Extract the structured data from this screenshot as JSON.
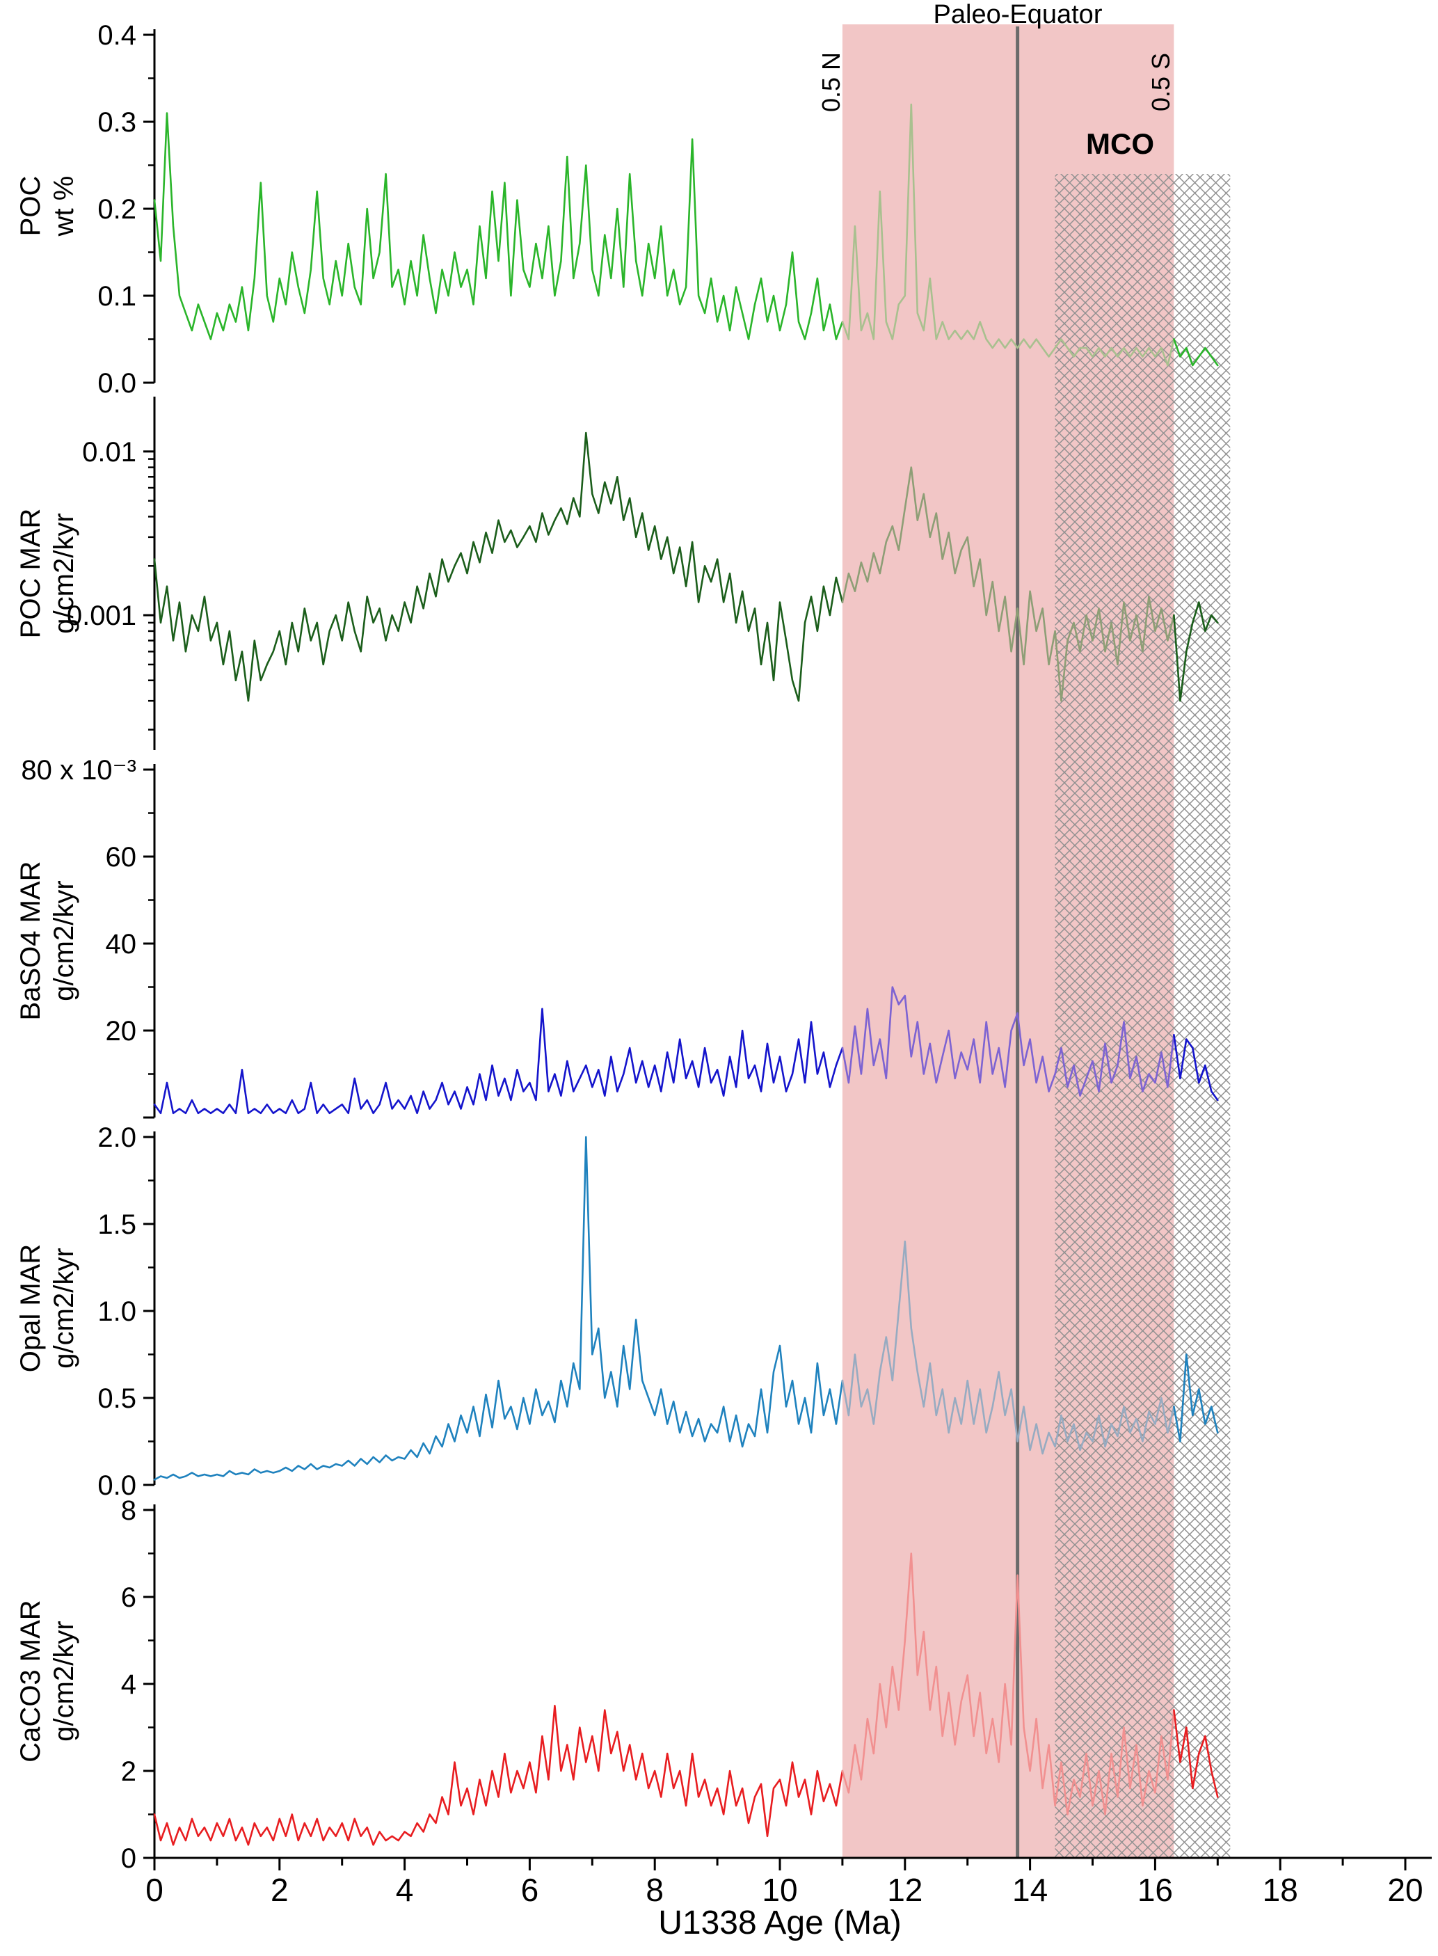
{
  "figure": {
    "xlabel": "U1338 Age (Ma)",
    "x_ticks": [
      0,
      2,
      4,
      6,
      8,
      10,
      12,
      14,
      16,
      18,
      20
    ],
    "x_minor_step": 1,
    "axis_color": "#000000",
    "annotations": {
      "paleo_equator": {
        "label": "Paleo-Equator",
        "x_ma": 13.8,
        "line_color": "#6b6b6b"
      },
      "band": {
        "label_left": "0.5 N",
        "label_right": "0.5 S",
        "x_ma": [
          11.0,
          16.3
        ],
        "color": "#f2c6c6"
      },
      "mco": {
        "label": "MCO",
        "x_ma": [
          14.4,
          17.2
        ],
        "hatch_color": "#909090"
      }
    }
  },
  "chart_data": [
    {
      "type": "line",
      "name": "poc-wt",
      "label": "POC",
      "units": "wt %",
      "scale": "linear",
      "ymin": 0,
      "ymax": 0.4,
      "yticks": [
        0,
        0.1,
        0.2,
        0.3,
        0.4
      ],
      "ytick_labels": [
        "0.0",
        "0.1",
        "0.2",
        "0.3",
        "0.4"
      ],
      "color_main": "#2ab52a",
      "color_band": "#a9c08f",
      "x_start": 0,
      "x_step": 0.1,
      "x_units": "Ma",
      "values": [
        0.21,
        0.14,
        0.31,
        0.18,
        0.1,
        0.08,
        0.06,
        0.09,
        0.07,
        0.05,
        0.08,
        0.06,
        0.09,
        0.07,
        0.11,
        0.06,
        0.12,
        0.23,
        0.1,
        0.07,
        0.12,
        0.09,
        0.15,
        0.11,
        0.08,
        0.13,
        0.22,
        0.12,
        0.09,
        0.14,
        0.1,
        0.16,
        0.11,
        0.09,
        0.2,
        0.12,
        0.15,
        0.24,
        0.11,
        0.13,
        0.09,
        0.14,
        0.1,
        0.17,
        0.12,
        0.08,
        0.13,
        0.1,
        0.15,
        0.11,
        0.13,
        0.09,
        0.18,
        0.12,
        0.22,
        0.14,
        0.23,
        0.1,
        0.21,
        0.13,
        0.11,
        0.16,
        0.12,
        0.18,
        0.1,
        0.14,
        0.26,
        0.12,
        0.16,
        0.25,
        0.13,
        0.1,
        0.17,
        0.12,
        0.2,
        0.11,
        0.24,
        0.14,
        0.1,
        0.16,
        0.12,
        0.18,
        0.1,
        0.13,
        0.09,
        0.11,
        0.28,
        0.1,
        0.08,
        0.12,
        0.07,
        0.1,
        0.06,
        0.11,
        0.08,
        0.05,
        0.09,
        0.12,
        0.07,
        0.1,
        0.06,
        0.09,
        0.15,
        0.07,
        0.05,
        0.08,
        0.12,
        0.06,
        0.09,
        0.05,
        0.07,
        0.05,
        0.18,
        0.06,
        0.08,
        0.05,
        0.22,
        0.07,
        0.05,
        0.09,
        0.1,
        0.32,
        0.08,
        0.06,
        0.12,
        0.05,
        0.07,
        0.05,
        0.06,
        0.05,
        0.06,
        0.05,
        0.07,
        0.05,
        0.04,
        0.05,
        0.04,
        0.05,
        0.04,
        0.05,
        0.04,
        0.05,
        0.04,
        0.03,
        0.04,
        0.05,
        0.04,
        0.03,
        0.04,
        0.04,
        0.03,
        0.04,
        0.03,
        0.04,
        0.03,
        0.04,
        0.03,
        0.04,
        0.03,
        0.04,
        0.03,
        0.04,
        0.02,
        0.05,
        0.03,
        0.04,
        0.02,
        0.03,
        0.04,
        0.03,
        0.02
      ]
    },
    {
      "type": "line",
      "name": "poc-mar",
      "label": "POC MAR",
      "units": "g/cm2/kyr",
      "scale": "log",
      "ymin": 0.00015,
      "ymax": 0.02,
      "yticks": [
        0.001,
        0.01
      ],
      "ytick_labels": [
        "0.001",
        "0.01"
      ],
      "color_main": "#1b5e1b",
      "color_band": "#8e9e76",
      "x_start": 0,
      "x_step": 0.1,
      "x_units": "Ma",
      "values": [
        0.0022,
        0.0009,
        0.0015,
        0.0007,
        0.0012,
        0.0006,
        0.001,
        0.0008,
        0.0013,
        0.0007,
        0.0009,
        0.0005,
        0.0008,
        0.0004,
        0.0006,
        0.0003,
        0.0007,
        0.0004,
        0.0005,
        0.0006,
        0.0008,
        0.0005,
        0.0009,
        0.0006,
        0.0011,
        0.0007,
        0.0009,
        0.0005,
        0.0008,
        0.001,
        0.0007,
        0.0012,
        0.0008,
        0.0006,
        0.0013,
        0.0009,
        0.0011,
        0.0007,
        0.001,
        0.0008,
        0.0012,
        0.0009,
        0.0015,
        0.0011,
        0.0018,
        0.0013,
        0.0022,
        0.0016,
        0.002,
        0.0024,
        0.0018,
        0.0028,
        0.0021,
        0.0032,
        0.0024,
        0.0038,
        0.0028,
        0.0033,
        0.0026,
        0.003,
        0.0035,
        0.0028,
        0.0042,
        0.0031,
        0.0038,
        0.0045,
        0.0036,
        0.0052,
        0.004,
        0.013,
        0.0055,
        0.0042,
        0.0065,
        0.0048,
        0.007,
        0.0038,
        0.0052,
        0.003,
        0.0042,
        0.0025,
        0.0035,
        0.0022,
        0.003,
        0.0018,
        0.0026,
        0.0015,
        0.0028,
        0.0012,
        0.002,
        0.0016,
        0.0022,
        0.0012,
        0.0018,
        0.0009,
        0.0014,
        0.0008,
        0.0011,
        0.0005,
        0.0009,
        0.0004,
        0.0012,
        0.0007,
        0.0004,
        0.0003,
        0.0009,
        0.0013,
        0.0008,
        0.0015,
        0.001,
        0.0017,
        0.0012,
        0.0018,
        0.0014,
        0.0021,
        0.0016,
        0.0024,
        0.0018,
        0.0028,
        0.0035,
        0.0025,
        0.0045,
        0.008,
        0.0038,
        0.0055,
        0.003,
        0.0042,
        0.0022,
        0.0032,
        0.0018,
        0.0025,
        0.003,
        0.0015,
        0.0022,
        0.001,
        0.0016,
        0.0008,
        0.0013,
        0.0006,
        0.0011,
        0.0005,
        0.0014,
        0.0008,
        0.0011,
        0.0005,
        0.0008,
        0.0003,
        0.0007,
        0.0009,
        0.0006,
        0.001,
        0.0007,
        0.0011,
        0.0006,
        0.0009,
        0.0005,
        0.0012,
        0.0007,
        0.001,
        0.0006,
        0.0013,
        0.0008,
        0.0011,
        0.0007,
        0.001,
        0.0003,
        0.0006,
        0.0009,
        0.0012,
        0.0008,
        0.001,
        0.0009
      ]
    },
    {
      "type": "line",
      "name": "baso4-mar",
      "label": "BaSO4 MAR",
      "units": "g/cm2/kyr",
      "scale": "linear",
      "ymin": 0,
      "ymax": 80,
      "value_scale_note": "x 10^-3",
      "yticks": [
        0,
        20,
        40,
        60,
        80
      ],
      "ytick_labels": [
        "",
        "20",
        "40",
        "60",
        "80 x 10⁻³"
      ],
      "color_main": "#1414cc",
      "color_band": "#7d63d2",
      "x_start": 0,
      "x_step": 0.1,
      "x_units": "Ma",
      "values": [
        3,
        1,
        8,
        1,
        2,
        1,
        4,
        1,
        2,
        1,
        2,
        1,
        3,
        1,
        11,
        1,
        2,
        1,
        3,
        1,
        2,
        1,
        4,
        1,
        2,
        8,
        1,
        3,
        1,
        2,
        3,
        1,
        9,
        2,
        4,
        1,
        3,
        8,
        2,
        4,
        2,
        5,
        1,
        6,
        2,
        4,
        8,
        3,
        6,
        2,
        7,
        3,
        10,
        4,
        12,
        5,
        9,
        4,
        11,
        6,
        8,
        4,
        25,
        6,
        10,
        5,
        13,
        6,
        9,
        12,
        7,
        11,
        5,
        14,
        6,
        10,
        16,
        8,
        13,
        7,
        12,
        6,
        15,
        8,
        18,
        9,
        13,
        7,
        16,
        8,
        11,
        5,
        14,
        7,
        20,
        9,
        12,
        6,
        17,
        8,
        14,
        6,
        10,
        18,
        8,
        22,
        10,
        15,
        7,
        12,
        16,
        8,
        21,
        10,
        25,
        12,
        18,
        9,
        30,
        26,
        28,
        14,
        22,
        10,
        17,
        8,
        14,
        20,
        9,
        15,
        11,
        18,
        8,
        22,
        10,
        16,
        7,
        20,
        24,
        12,
        18,
        8,
        14,
        6,
        10,
        16,
        7,
        12,
        5,
        9,
        13,
        6,
        17,
        8,
        12,
        22,
        9,
        14,
        6,
        10,
        8,
        15,
        7,
        19,
        9,
        18,
        16,
        8,
        12,
        6,
        4
      ]
    },
    {
      "type": "line",
      "name": "opal-mar",
      "label": "Opal MAR",
      "units": "g/cm2/kyr",
      "scale": "linear",
      "ymin": 0,
      "ymax": 2.0,
      "yticks": [
        0,
        0.5,
        1.0,
        1.5,
        2.0
      ],
      "ytick_labels": [
        "0.0",
        "0.5",
        "1.0",
        "1.5",
        "2.0"
      ],
      "color_main": "#1f82be",
      "color_band": "#97abc1",
      "x_start": 0,
      "x_step": 0.1,
      "x_units": "Ma",
      "values": [
        0.03,
        0.05,
        0.04,
        0.06,
        0.04,
        0.05,
        0.07,
        0.05,
        0.06,
        0.05,
        0.06,
        0.05,
        0.08,
        0.06,
        0.07,
        0.06,
        0.09,
        0.07,
        0.08,
        0.07,
        0.08,
        0.1,
        0.08,
        0.11,
        0.09,
        0.12,
        0.09,
        0.11,
        0.1,
        0.12,
        0.11,
        0.14,
        0.11,
        0.15,
        0.12,
        0.16,
        0.13,
        0.17,
        0.14,
        0.16,
        0.15,
        0.2,
        0.16,
        0.24,
        0.18,
        0.28,
        0.22,
        0.35,
        0.25,
        0.4,
        0.3,
        0.45,
        0.28,
        0.52,
        0.33,
        0.6,
        0.38,
        0.45,
        0.32,
        0.5,
        0.35,
        0.55,
        0.4,
        0.48,
        0.36,
        0.6,
        0.45,
        0.7,
        0.55,
        2.0,
        0.75,
        0.9,
        0.5,
        0.65,
        0.45,
        0.8,
        0.55,
        0.95,
        0.6,
        0.5,
        0.4,
        0.55,
        0.35,
        0.48,
        0.3,
        0.42,
        0.28,
        0.38,
        0.25,
        0.35,
        0.3,
        0.45,
        0.25,
        0.4,
        0.22,
        0.35,
        0.28,
        0.55,
        0.3,
        0.65,
        0.8,
        0.45,
        0.6,
        0.35,
        0.5,
        0.3,
        0.7,
        0.4,
        0.55,
        0.35,
        0.6,
        0.4,
        0.75,
        0.45,
        0.55,
        0.35,
        0.65,
        0.85,
        0.6,
        1.0,
        1.4,
        0.9,
        0.65,
        0.45,
        0.7,
        0.4,
        0.55,
        0.3,
        0.5,
        0.35,
        0.6,
        0.35,
        0.55,
        0.3,
        0.45,
        0.65,
        0.4,
        0.55,
        0.25,
        0.45,
        0.2,
        0.35,
        0.18,
        0.3,
        0.22,
        0.4,
        0.25,
        0.35,
        0.2,
        0.3,
        0.25,
        0.4,
        0.22,
        0.35,
        0.28,
        0.45,
        0.3,
        0.38,
        0.25,
        0.42,
        0.35,
        0.5,
        0.3,
        0.45,
        0.25,
        0.75,
        0.4,
        0.55,
        0.35,
        0.45,
        0.3
      ]
    },
    {
      "type": "line",
      "name": "caco3-mar",
      "label": "CaCO3 MAR",
      "units": "g/cm2/kyr",
      "scale": "linear",
      "ymin": 0,
      "ymax": 8,
      "yticks": [
        0,
        2,
        4,
        6,
        8
      ],
      "ytick_labels": [
        "0",
        "2",
        "4",
        "6",
        "8"
      ],
      "color_main": "#e81d20",
      "color_band": "#f19090",
      "x_start": 0,
      "x_step": 0.1,
      "x_units": "Ma",
      "values": [
        1.0,
        0.4,
        0.8,
        0.3,
        0.7,
        0.4,
        0.9,
        0.5,
        0.7,
        0.4,
        0.8,
        0.5,
        0.9,
        0.4,
        0.7,
        0.3,
        0.8,
        0.5,
        0.7,
        0.4,
        0.9,
        0.5,
        1.0,
        0.4,
        0.8,
        0.5,
        0.9,
        0.4,
        0.7,
        0.5,
        0.8,
        0.4,
        0.9,
        0.5,
        0.7,
        0.3,
        0.6,
        0.4,
        0.5,
        0.4,
        0.6,
        0.5,
        0.8,
        0.6,
        1.0,
        0.8,
        1.4,
        1.0,
        2.2,
        1.2,
        1.6,
        1.0,
        1.8,
        1.2,
        2.0,
        1.4,
        2.4,
        1.5,
        2.0,
        1.6,
        2.2,
        1.5,
        2.8,
        1.8,
        3.5,
        2.0,
        2.6,
        1.8,
        3.0,
        2.2,
        2.8,
        2.0,
        3.4,
        2.4,
        2.9,
        2.0,
        2.6,
        1.8,
        2.4,
        1.6,
        2.0,
        1.4,
        2.4,
        1.6,
        2.0,
        1.2,
        2.4,
        1.4,
        1.8,
        1.2,
        1.6,
        1.0,
        2.0,
        1.2,
        1.6,
        0.8,
        1.4,
        1.7,
        0.5,
        1.6,
        1.8,
        1.2,
        2.2,
        1.4,
        1.8,
        1.0,
        2.0,
        1.3,
        1.7,
        1.2,
        2.0,
        1.5,
        2.6,
        1.8,
        3.2,
        2.4,
        4.0,
        3.0,
        4.4,
        3.4,
        5.0,
        7.0,
        4.2,
        5.2,
        3.4,
        4.4,
        2.8,
        3.8,
        2.6,
        3.6,
        4.2,
        2.8,
        3.8,
        2.4,
        3.2,
        2.2,
        4.0,
        2.6,
        6.5,
        3.0,
        2.0,
        3.2,
        1.6,
        2.6,
        1.2,
        2.2,
        1.0,
        1.8,
        1.4,
        2.4,
        1.2,
        2.0,
        1.0,
        2.4,
        1.4,
        3.0,
        1.6,
        2.6,
        1.2,
        2.0,
        1.5,
        2.8,
        1.8,
        3.4,
        2.2,
        3.0,
        1.6,
        2.4,
        2.8,
        2.0,
        1.4
      ]
    }
  ]
}
